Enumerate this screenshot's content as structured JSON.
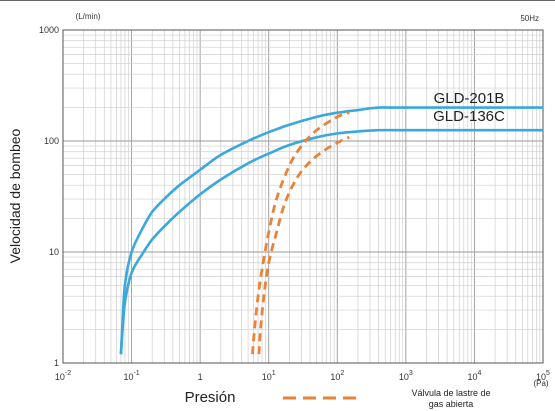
{
  "chart_data": {
    "type": "line",
    "x_unit": "(Pa)",
    "y_unit": "(L/min)",
    "frequency": "50Hz",
    "xlabel": "Presión",
    "ylabel": "Velocidad de bombeo",
    "x_scale": "log",
    "y_scale": "log",
    "xlim": [
      0.01,
      100000
    ],
    "ylim": [
      1,
      1000
    ],
    "x_ticks": [
      {
        "value": 0.01,
        "base": "10",
        "exp": "-2"
      },
      {
        "value": 0.1,
        "base": "10",
        "exp": "-1"
      },
      {
        "value": 1,
        "base": "1",
        "exp": ""
      },
      {
        "value": 10,
        "base": "10",
        "exp": "1"
      },
      {
        "value": 100,
        "base": "10",
        "exp": "2"
      },
      {
        "value": 1000,
        "base": "10",
        "exp": "3"
      },
      {
        "value": 10000,
        "base": "10",
        "exp": "4"
      },
      {
        "value": 100000,
        "base": "10",
        "exp": "5"
      }
    ],
    "y_ticks": [
      {
        "value": 1,
        "label": "1"
      },
      {
        "value": 10,
        "label": "10"
      },
      {
        "value": 100,
        "label": "100"
      },
      {
        "value": 1000,
        "label": "1000"
      }
    ],
    "grid": true,
    "series_color": "#3aa8dc",
    "gas_ballast_color": "#e8833a",
    "series": [
      {
        "name": "GLD-201B",
        "style": "solid",
        "x": [
          0.07,
          0.073,
          0.08,
          0.1,
          0.15,
          0.2,
          0.3,
          0.5,
          1,
          2,
          5,
          10,
          20,
          50,
          100,
          200,
          400,
          1000,
          100000
        ],
        "y": [
          1.2,
          2,
          5,
          10,
          17,
          23,
          30,
          40,
          55,
          75,
          100,
          120,
          140,
          165,
          180,
          190,
          200,
          200,
          200
        ]
      },
      {
        "name": "GLD-136C",
        "style": "solid",
        "x": [
          0.07,
          0.073,
          0.08,
          0.1,
          0.15,
          0.2,
          0.3,
          0.5,
          1,
          2,
          5,
          10,
          20,
          50,
          100,
          200,
          400,
          1000,
          100000
        ],
        "y": [
          1.2,
          1.8,
          3.5,
          6.5,
          10,
          13,
          17,
          23,
          33,
          45,
          63,
          77,
          92,
          108,
          117,
          122,
          125,
          125,
          125
        ]
      },
      {
        "name": "GLD-201B gas ballast",
        "style": "dashed",
        "x": [
          5.8,
          6.2,
          7,
          8,
          10,
          13,
          20,
          30,
          50,
          100,
          150
        ],
        "y": [
          1.2,
          2,
          4,
          7,
          15,
          30,
          60,
          90,
          125,
          165,
          180
        ]
      },
      {
        "name": "GLD-136C gas ballast",
        "style": "dashed",
        "x": [
          7.2,
          7.6,
          8.5,
          10,
          13,
          17,
          25,
          40,
          70,
          120,
          150
        ],
        "y": [
          1.2,
          2,
          4,
          8,
          15,
          27,
          45,
          65,
          85,
          102,
          108
        ]
      }
    ],
    "series_labels": [
      "GLD-201B",
      "GLD-136C"
    ],
    "legend_label": [
      "Válvula de lastre de",
      "gas abierta"
    ]
  }
}
